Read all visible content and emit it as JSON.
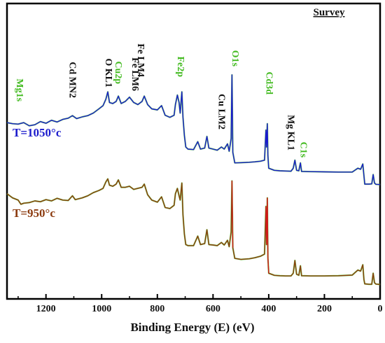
{
  "chart_data": {
    "type": "line",
    "title": "Survey",
    "xlabel": "Binding Energy (E) (eV)",
    "ylabel": "",
    "xlim": [
      1340,
      0
    ],
    "ylim": [
      0,
      100
    ],
    "x_reversed": true,
    "x_ticks": [
      1200,
      1000,
      800,
      600,
      400,
      200,
      0
    ],
    "y_ticks": [],
    "grid": false,
    "series": [
      {
        "name": "T=1050°c",
        "color": "#1a1acc",
        "points": [
          [
            1340,
            77.5
          ],
          [
            1320,
            77.0
          ],
          [
            1300,
            76.8
          ],
          [
            1280,
            77.5
          ],
          [
            1260,
            76.0
          ],
          [
            1240,
            76.5
          ],
          [
            1220,
            78.0
          ],
          [
            1200,
            77.2
          ],
          [
            1180,
            78.6
          ],
          [
            1160,
            77.8
          ],
          [
            1140,
            79.0
          ],
          [
            1120,
            79.6
          ],
          [
            1105,
            80.8
          ],
          [
            1090,
            79.4
          ],
          [
            1070,
            80.2
          ],
          [
            1050,
            80.8
          ],
          [
            1030,
            82.0
          ],
          [
            1010,
            84.0
          ],
          [
            995,
            85.5
          ],
          [
            985,
            88.5
          ],
          [
            978,
            92.0
          ],
          [
            972,
            87.0
          ],
          [
            960,
            86.5
          ],
          [
            948,
            87.5
          ],
          [
            940,
            90.0
          ],
          [
            930,
            86.5
          ],
          [
            915,
            87.5
          ],
          [
            900,
            89.5
          ],
          [
            885,
            87.0
          ],
          [
            870,
            86.0
          ],
          [
            855,
            87.5
          ],
          [
            847,
            90.0
          ],
          [
            835,
            86.0
          ],
          [
            820,
            84.0
          ],
          [
            800,
            83.5
          ],
          [
            785,
            85.5
          ],
          [
            772,
            81.0
          ],
          [
            755,
            80.0
          ],
          [
            740,
            81.0
          ],
          [
            735,
            86.0
          ],
          [
            728,
            90.5
          ],
          [
            722,
            87.0
          ],
          [
            718,
            82.0
          ],
          [
            712,
            92.0
          ],
          [
            708,
            80.0
          ],
          [
            703,
            71.5
          ],
          [
            698,
            66.0
          ],
          [
            690,
            65.0
          ],
          [
            670,
            64.8
          ],
          [
            655,
            68.5
          ],
          [
            645,
            65.0
          ],
          [
            630,
            65.5
          ],
          [
            622,
            71.0
          ],
          [
            615,
            65.5
          ],
          [
            600,
            65.0
          ],
          [
            585,
            64.5
          ],
          [
            570,
            66.0
          ],
          [
            560,
            65.0
          ],
          [
            548,
            67.5
          ],
          [
            542,
            64.0
          ],
          [
            535,
            70.0
          ],
          [
            532,
            100.0
          ],
          [
            529,
            63.5
          ],
          [
            522,
            58.5
          ],
          [
            500,
            58.6
          ],
          [
            470,
            58.8
          ],
          [
            450,
            59.0
          ],
          [
            430,
            59.3
          ],
          [
            415,
            59.8
          ],
          [
            410,
            74.0
          ],
          [
            408,
            66.0
          ],
          [
            405,
            77.0
          ],
          [
            403,
            62.0
          ],
          [
            400,
            56.0
          ],
          [
            380,
            55.0
          ],
          [
            360,
            54.8
          ],
          [
            340,
            54.7
          ],
          [
            320,
            54.6
          ],
          [
            312,
            56.0
          ],
          [
            306,
            59.8
          ],
          [
            300,
            55.0
          ],
          [
            292,
            54.8
          ],
          [
            286,
            58.5
          ],
          [
            282,
            54.5
          ],
          [
            250,
            54.4
          ],
          [
            200,
            54.3
          ],
          [
            150,
            54.2
          ],
          [
            100,
            54.2
          ],
          [
            80,
            56.0
          ],
          [
            70,
            55.5
          ],
          [
            62,
            58.0
          ],
          [
            58,
            52.5
          ],
          [
            55,
            48.5
          ],
          [
            40,
            48.5
          ],
          [
            30,
            48.6
          ],
          [
            25,
            53.0
          ],
          [
            20,
            49.0
          ],
          [
            15,
            48.4
          ],
          [
            0,
            48.3
          ]
        ]
      },
      {
        "name": "T=950°c",
        "color": "#8b3a0e",
        "points": [
          [
            1340,
            44.0
          ],
          [
            1320,
            42.0
          ],
          [
            1300,
            41.0
          ],
          [
            1290,
            39.0
          ],
          [
            1280,
            39.5
          ],
          [
            1260,
            39.8
          ],
          [
            1240,
            40.6
          ],
          [
            1220,
            40.2
          ],
          [
            1200,
            41.2
          ],
          [
            1180,
            40.6
          ],
          [
            1160,
            41.8
          ],
          [
            1140,
            41.0
          ],
          [
            1120,
            40.8
          ],
          [
            1105,
            43.0
          ],
          [
            1095,
            41.2
          ],
          [
            1070,
            42.0
          ],
          [
            1050,
            43.0
          ],
          [
            1030,
            44.5
          ],
          [
            1010,
            45.5
          ],
          [
            995,
            46.5
          ],
          [
            985,
            49.5
          ],
          [
            978,
            51.0
          ],
          [
            972,
            48.0
          ],
          [
            960,
            47.5
          ],
          [
            948,
            48.5
          ],
          [
            940,
            50.5
          ],
          [
            930,
            47.0
          ],
          [
            915,
            47.0
          ],
          [
            900,
            47.5
          ],
          [
            885,
            46.0
          ],
          [
            870,
            46.5
          ],
          [
            855,
            47.0
          ],
          [
            847,
            48.5
          ],
          [
            835,
            43.5
          ],
          [
            820,
            41.0
          ],
          [
            800,
            40.0
          ],
          [
            785,
            42.5
          ],
          [
            772,
            37.5
          ],
          [
            755,
            37.0
          ],
          [
            740,
            38.5
          ],
          [
            735,
            44.0
          ],
          [
            728,
            46.5
          ],
          [
            722,
            43.0
          ],
          [
            718,
            41.0
          ],
          [
            712,
            49.0
          ],
          [
            708,
            34.0
          ],
          [
            703,
            25.0
          ],
          [
            698,
            20.0
          ],
          [
            690,
            19.5
          ],
          [
            670,
            19.5
          ],
          [
            655,
            24.0
          ],
          [
            645,
            20.0
          ],
          [
            630,
            20.5
          ],
          [
            622,
            27.0
          ],
          [
            615,
            20.0
          ],
          [
            600,
            19.8
          ],
          [
            585,
            19.5
          ],
          [
            570,
            21.0
          ],
          [
            560,
            19.8
          ],
          [
            548,
            22.0
          ],
          [
            542,
            19.0
          ],
          [
            535,
            26.0
          ],
          [
            532,
            50.0
          ],
          [
            529,
            18.5
          ],
          [
            522,
            13.5
          ],
          [
            500,
            13.0
          ],
          [
            470,
            13.3
          ],
          [
            450,
            13.8
          ],
          [
            430,
            14.5
          ],
          [
            415,
            15.5
          ],
          [
            410,
            38.0
          ],
          [
            408,
            20.0
          ],
          [
            405,
            42.0
          ],
          [
            403,
            14.0
          ],
          [
            400,
            6.5
          ],
          [
            380,
            5.5
          ],
          [
            360,
            5.3
          ],
          [
            340,
            5.2
          ],
          [
            320,
            5.2
          ],
          [
            312,
            6.5
          ],
          [
            306,
            12.5
          ],
          [
            300,
            6.0
          ],
          [
            292,
            5.5
          ],
          [
            286,
            10.0
          ],
          [
            282,
            5.3
          ],
          [
            250,
            5.2
          ],
          [
            200,
            5.2
          ],
          [
            150,
            5.3
          ],
          [
            100,
            5.6
          ],
          [
            80,
            8.0
          ],
          [
            70,
            7.5
          ],
          [
            62,
            10.5
          ],
          [
            58,
            3.5
          ],
          [
            55,
            1.5
          ],
          [
            40,
            1.3
          ],
          [
            30,
            1.3
          ],
          [
            25,
            6.5
          ],
          [
            20,
            2.0
          ],
          [
            15,
            1.4
          ],
          [
            0,
            1.2
          ]
        ]
      }
    ],
    "annotations": [
      {
        "text": "Mg1s",
        "x": 1305,
        "color": "#44bb22"
      },
      {
        "text": "Cd MN2",
        "x": 1115,
        "color": "#111111"
      },
      {
        "text": "O KL1",
        "x": 985,
        "color": "#111111"
      },
      {
        "text": "Cu2p",
        "x": 950,
        "color": "#44bb22"
      },
      {
        "text": "Fe LM4",
        "x": 870,
        "color": "#111111"
      },
      {
        "text": "Fe LM6",
        "x": 890,
        "color": "#111111"
      },
      {
        "text": "Fe2p",
        "x": 727,
        "color": "#44bb22"
      },
      {
        "text": "Cu LM2",
        "x": 580,
        "color": "#111111"
      },
      {
        "text": "O1s",
        "x": 530,
        "color": "#44bb22"
      },
      {
        "text": "Cd3d",
        "x": 408,
        "color": "#44bb22"
      },
      {
        "text": "Mg KL1",
        "x": 330,
        "color": "#111111"
      },
      {
        "text": "C1s",
        "x": 285,
        "color": "#44bb22"
      }
    ]
  }
}
